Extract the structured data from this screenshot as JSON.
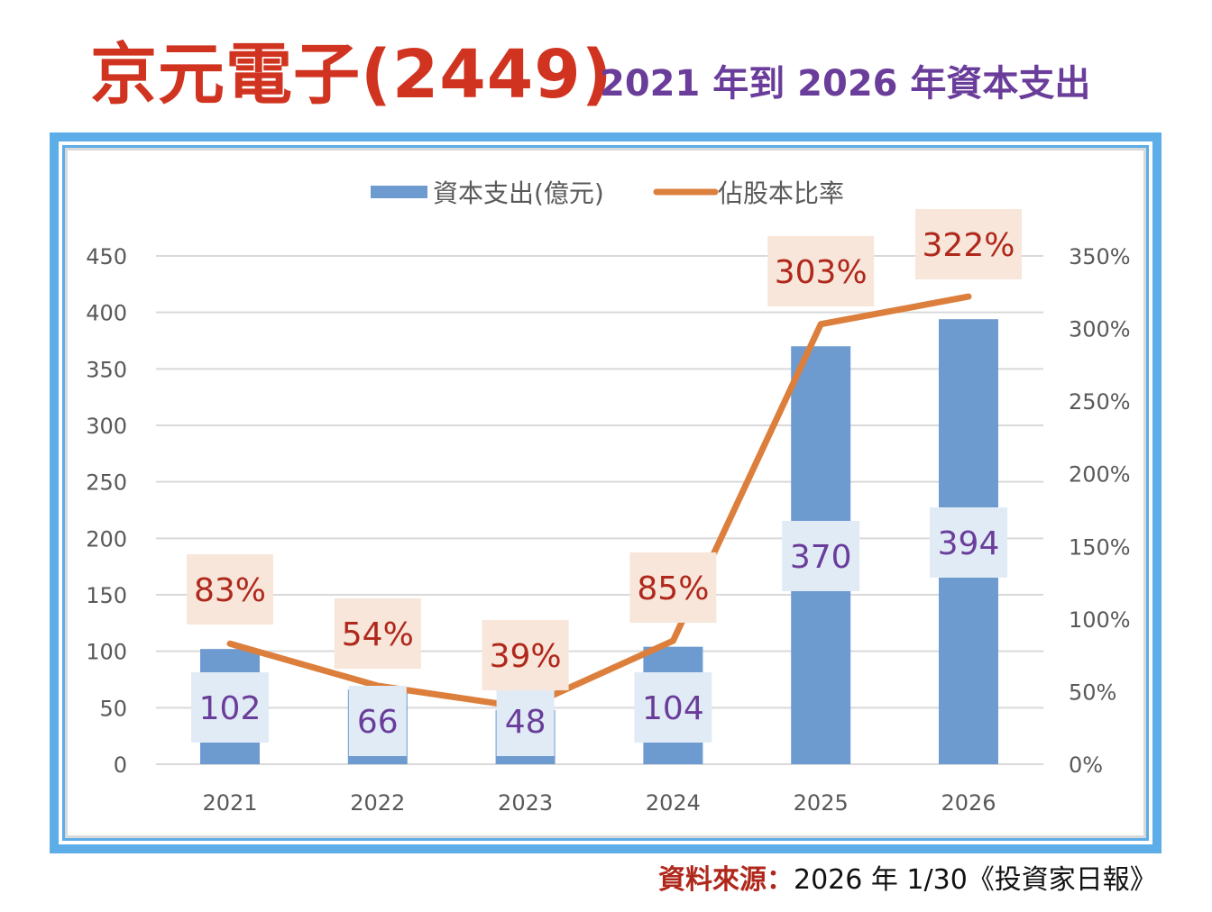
{
  "header": {
    "title_main": "京元電子(2449)",
    "title_sub": "2021 年到 2026 年資本支出"
  },
  "footer": {
    "source_label": "資料來源：",
    "source_text": "2026 年 1/30《投資家日報》"
  },
  "colors": {
    "bar": "#6e9bcf",
    "line": "#dc7f3c",
    "bar_label_bg": "#e1ebf6",
    "bar_label_text": "#6a3d9a",
    "line_label_bg": "#f7e6d9",
    "line_label_text": "#b0281c",
    "grid": "#d9d9d9",
    "tick_text": "#595959",
    "frame": "#5dade8"
  },
  "chart_data": {
    "type": "bar",
    "title": "京元電子(2449) 2021 年到 2026 年資本支出",
    "categories": [
      "2021",
      "2022",
      "2023",
      "2024",
      "2025",
      "2026"
    ],
    "series": [
      {
        "name": "資本支出(億元)",
        "type": "bar",
        "axis": "left",
        "values": [
          102,
          66,
          48,
          104,
          370,
          394
        ],
        "labels": [
          "102",
          "66",
          "48",
          "104",
          "370",
          "394"
        ]
      },
      {
        "name": "佔股本比率",
        "type": "line",
        "axis": "right",
        "values": [
          83,
          54,
          39,
          85,
          303,
          322
        ],
        "labels": [
          "83%",
          "54%",
          "39%",
          "85%",
          "303%",
          "322%"
        ]
      }
    ],
    "xlabel": "",
    "ylabel": "",
    "ylim": [
      0,
      450
    ],
    "y_ticks": [
      "0",
      "50",
      "100",
      "150",
      "200",
      "250",
      "300",
      "350",
      "400",
      "450"
    ],
    "y_tick_values": [
      0,
      50,
      100,
      150,
      200,
      250,
      300,
      350,
      400,
      450
    ],
    "y2lim": [
      0,
      350
    ],
    "y2_ticks": [
      "0%",
      "50%",
      "100%",
      "150%",
      "200%",
      "250%",
      "300%",
      "350%"
    ],
    "y2_tick_values": [
      0,
      50,
      100,
      150,
      200,
      250,
      300,
      350
    ],
    "grid": true,
    "legend": {
      "position": "top-center",
      "entries": [
        "資本支出(億元)",
        "佔股本比率"
      ]
    }
  }
}
